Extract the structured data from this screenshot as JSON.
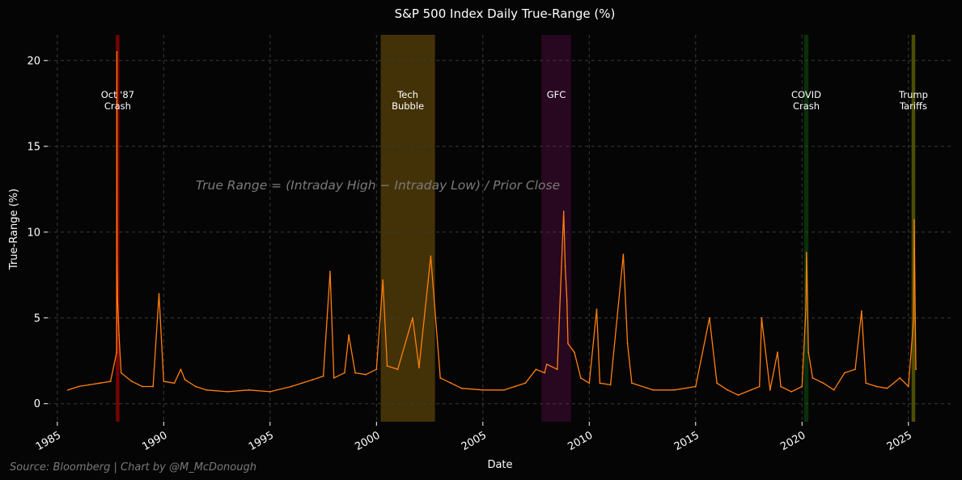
{
  "chart_data": {
    "type": "line",
    "title": "S&P 500 Index Daily True-Range (%)",
    "xlabel": "Date",
    "ylabel": "True-Range (%)",
    "xlim": [
      1984.55,
      2027.1
    ],
    "ylim": [
      -1.05,
      21.5
    ],
    "x_ticks": [
      1985,
      1990,
      1995,
      2000,
      2005,
      2010,
      2015,
      2020,
      2025
    ],
    "x_tick_labels": [
      "1985",
      "1990",
      "1995",
      "2000",
      "2005",
      "2010",
      "2015",
      "2020",
      "2025"
    ],
    "y_ticks": [
      0,
      5,
      10,
      15,
      20
    ],
    "y_tick_labels": [
      "0",
      "5",
      "10",
      "15",
      "20"
    ],
    "grid": true,
    "annotation": "True Range = (Intraday High − Intraday Low) / Prior Close",
    "source": "Source: Bloomberg | Chart by @M_McDonough",
    "event_bands": [
      {
        "label_lines": [
          "Oct '87",
          "Crash"
        ],
        "start": 1987.75,
        "end": 1987.92,
        "color": "#ff0000",
        "opacity": 0.45
      },
      {
        "label_lines": [
          "Tech",
          "Bubble"
        ],
        "start": 2000.2,
        "end": 2002.75,
        "color": "#b8860b",
        "opacity": 0.35
      },
      {
        "label_lines": [
          "GFC"
        ],
        "start": 2007.75,
        "end": 2009.15,
        "color": "#4b0a3c",
        "opacity": 0.5
      },
      {
        "label_lines": [
          "COVID",
          "Crash"
        ],
        "start": 2020.1,
        "end": 2020.3,
        "color": "#0d4d0d",
        "opacity": 0.6
      },
      {
        "label_lines": [
          "Trump",
          "Tariffs"
        ],
        "start": 2025.15,
        "end": 2025.32,
        "color": "#8b8b00",
        "opacity": 0.55
      }
    ],
    "series": [
      {
        "color": "#ff7f0e",
        "x": [
          1985.5,
          1986.0,
          1986.5,
          1987.0,
          1987.5,
          1987.79,
          1987.8,
          1987.81,
          1987.83,
          1987.9,
          1988.0,
          1988.5,
          1989.0,
          1989.5,
          1989.78,
          1990.0,
          1990.5,
          1990.8,
          1991.0,
          1991.5,
          1992.0,
          1993.0,
          1994.0,
          1995.0,
          1996.0,
          1996.5,
          1997.0,
          1997.5,
          1997.82,
          1998.0,
          1998.5,
          1998.7,
          1999.0,
          1999.5,
          2000.0,
          2000.3,
          2000.5,
          2001.0,
          2001.7,
          2002.0,
          2002.55,
          2003.0,
          2003.5,
          2004.0,
          2005.0,
          2006.0,
          2006.5,
          2007.0,
          2007.5,
          2007.9,
          2008.0,
          2008.5,
          2008.8,
          2008.87,
          2008.95,
          2009.0,
          2009.3,
          2009.6,
          2010.0,
          2010.35,
          2010.5,
          2011.0,
          2011.6,
          2011.8,
          2012.0,
          2013.0,
          2014.0,
          2015.0,
          2015.65,
          2016.0,
          2016.5,
          2017.0,
          2018.0,
          2018.1,
          2018.5,
          2018.85,
          2019.0,
          2019.5,
          2020.0,
          2020.18,
          2020.21,
          2020.3,
          2020.5,
          2021.0,
          2021.5,
          2022.0,
          2022.5,
          2022.8,
          2023.0,
          2023.5,
          2024.0,
          2024.6,
          2025.0,
          2025.25,
          2025.27,
          2025.35
        ],
        "y": [
          0.8,
          1.0,
          1.1,
          1.2,
          1.3,
          3.0,
          20.5,
          8.5,
          6.0,
          4.0,
          1.8,
          1.3,
          1.0,
          1.0,
          6.4,
          1.3,
          1.2,
          2.0,
          1.4,
          1.0,
          0.8,
          0.7,
          0.8,
          0.7,
          1.0,
          1.2,
          1.4,
          1.6,
          7.7,
          1.5,
          1.8,
          4.0,
          1.8,
          1.7,
          2.0,
          7.2,
          2.2,
          2.0,
          5.0,
          2.1,
          8.6,
          1.5,
          1.2,
          0.9,
          0.8,
          0.8,
          1.0,
          1.2,
          2.0,
          1.8,
          2.3,
          2.0,
          11.2,
          8.0,
          6.0,
          3.5,
          3.0,
          1.5,
          1.2,
          5.5,
          1.2,
          1.1,
          8.7,
          3.5,
          1.2,
          0.8,
          0.8,
          1.0,
          5.0,
          1.2,
          0.8,
          0.5,
          1.0,
          5.0,
          0.8,
          3.0,
          1.0,
          0.7,
          1.0,
          5.5,
          8.8,
          3.0,
          1.5,
          1.2,
          0.8,
          1.8,
          2.0,
          5.4,
          1.2,
          1.0,
          0.9,
          1.5,
          1.0,
          5.0,
          10.7,
          2.0
        ]
      }
    ]
  }
}
